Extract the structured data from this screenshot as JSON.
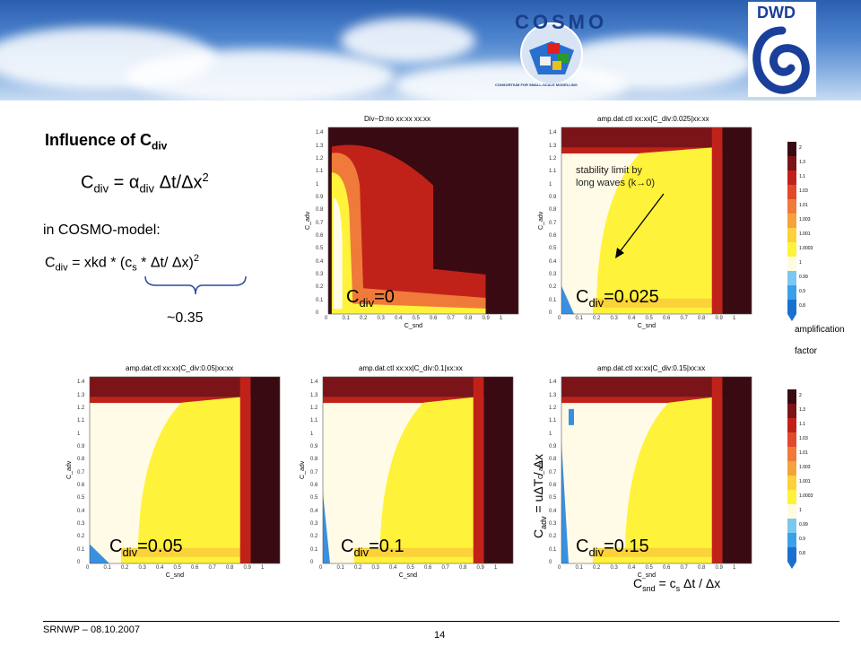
{
  "header": {
    "logo_left_text": "COSMO",
    "logo_left_subtext": "CONSORTIUM FOR SMALL-SCALE MODELLING",
    "logo_right_text": "DWD"
  },
  "left_text": {
    "heading_main": "Influence of C",
    "heading_sub": "div",
    "formula1": "C",
    "formula1_sub": "div",
    "formula1_rest": " =  α",
    "formula1_rest_sub": "div",
    "formula1_tail": " Δt/Δx",
    "formula1_sup": "2",
    "in_cosmo": "in COSMO-model:",
    "formula2": "C",
    "formula2_sub": "div",
    "formula2_rest": " = xkd * (c",
    "formula2_sub2": "s",
    "formula2_tail": " * Δt/ Δx)",
    "formula2_sup": "2",
    "approx": "~0.35"
  },
  "annotation": {
    "line1": "stability limit by",
    "line2": "long waves (k→0)"
  },
  "colorbar": {
    "ticks": [
      "2",
      "1.3",
      "1.1",
      "1.03",
      "1.01",
      "1.003",
      "1.001",
      "1.0003",
      "1",
      "0.99",
      "0.9",
      "0.8"
    ],
    "label1": "amplification",
    "label2": "factor",
    "colors": [
      "#3a0a12",
      "#7a1418",
      "#c0221a",
      "#e04a2a",
      "#f07a3a",
      "#f6a23c",
      "#fcd23a",
      "#fff23a",
      "#fffbe0",
      "#7ac8f0",
      "#3aa0e8",
      "#1a70d0"
    ]
  },
  "axis_labels": {
    "big_y": "C",
    "big_y_sub": "adv",
    "big_y_rest": " = uΔT / Δx",
    "big_x": "C",
    "big_x_sub": "snd",
    "big_x_rest": " = c",
    "big_x_sub2": "s",
    "big_x_tail": " Δt / Δx"
  },
  "footer": {
    "left": "SRNWP  – 08.10.2007",
    "page": "14"
  },
  "chart_data": [
    {
      "type": "heatmap",
      "title": "Div−D:no   xx:xx   xx:xx",
      "xlabel": "C_snd",
      "ylabel": "C_adv",
      "label": "C_div=0",
      "label_main": "C",
      "label_sub": "div",
      "label_val": "=0",
      "xlim": [
        0,
        1
      ],
      "ylim": [
        0,
        1.45
      ],
      "xticks": [
        "0",
        "0.1",
        "0.2",
        "0.3",
        "0.4",
        "0.5",
        "0.6",
        "0.7",
        "0.8",
        "0.9",
        "1"
      ],
      "yticks": [
        "1.4",
        "1.3",
        "1.2",
        "1.1",
        "1",
        "0.9",
        "0.8",
        "0.7",
        "0.6",
        "0.5",
        "0.4",
        "0.3",
        "0.2",
        "0.1",
        "0"
      ]
    },
    {
      "type": "heatmap",
      "title": "amp.dat.ctl     xx:xx|C_div:0.025|xx:xx",
      "xlabel": "C_snd",
      "ylabel": "C_adv",
      "label": "C_div=0.025",
      "label_main": "C",
      "label_sub": "div",
      "label_val": "=0.025",
      "xlim": [
        0,
        1
      ],
      "ylim": [
        0,
        1.45
      ],
      "xticks": [
        "0",
        "0.1",
        "0.2",
        "0.3",
        "0.4",
        "0.5",
        "0.6",
        "0.7",
        "0.8",
        "0.9",
        "1"
      ],
      "yticks": [
        "1.4",
        "1.3",
        "1.2",
        "1.1",
        "1",
        "0.9",
        "0.8",
        "0.7",
        "0.6",
        "0.5",
        "0.4",
        "0.3",
        "0.2",
        "0.1",
        "0"
      ]
    },
    {
      "type": "heatmap",
      "title": "amp.dat.ctl     xx:xx|C_div:0.05|xx:xx",
      "xlabel": "C_snd",
      "ylabel": "C_adv",
      "label": "C_div=0.05",
      "label_main": "C",
      "label_sub": "div",
      "label_val": "=0.05",
      "xlim": [
        0,
        1
      ],
      "ylim": [
        0,
        1.45
      ],
      "xticks": [
        "0",
        "0.1",
        "0.2",
        "0.3",
        "0.4",
        "0.5",
        "0.6",
        "0.7",
        "0.8",
        "0.9",
        "1"
      ],
      "yticks": [
        "1.4",
        "1.3",
        "1.2",
        "1.1",
        "1",
        "0.9",
        "0.8",
        "0.7",
        "0.6",
        "0.5",
        "0.4",
        "0.3",
        "0.2",
        "0.1",
        "0"
      ]
    },
    {
      "type": "heatmap",
      "title": "amp.dat.ctl     xx:xx|C_div:0.1|xx:xx",
      "xlabel": "C_snd",
      "ylabel": "C_adv",
      "label": "C_div=0.1",
      "label_main": "C",
      "label_sub": "div",
      "label_val": "=0.1",
      "xlim": [
        0,
        1
      ],
      "ylim": [
        0,
        1.45
      ],
      "xticks": [
        "0",
        "0.1",
        "0.2",
        "0.3",
        "0.4",
        "0.5",
        "0.6",
        "0.7",
        "0.8",
        "0.9",
        "1"
      ],
      "yticks": [
        "1.4",
        "1.3",
        "1.2",
        "1.1",
        "1",
        "0.9",
        "0.8",
        "0.7",
        "0.6",
        "0.5",
        "0.4",
        "0.3",
        "0.2",
        "0.1",
        "0"
      ]
    },
    {
      "type": "heatmap",
      "title": "amp.dat.ctl     xx:xx|C_div:0.15|xx:xx",
      "xlabel": "C_snd",
      "ylabel": "C_adv",
      "label": "C_div=0.15",
      "label_main": "C",
      "label_sub": "div",
      "label_val": "=0.15",
      "xlim": [
        0,
        1
      ],
      "ylim": [
        0,
        1.45
      ],
      "xticks": [
        "0",
        "0.1",
        "0.2",
        "0.3",
        "0.4",
        "0.5",
        "0.6",
        "0.7",
        "0.8",
        "0.9",
        "1"
      ],
      "yticks": [
        "1.4",
        "1.3",
        "1.2",
        "1.1",
        "1",
        "0.9",
        "0.8",
        "0.7",
        "0.6",
        "0.5",
        "0.4",
        "0.3",
        "0.2",
        "0.1",
        "0"
      ]
    }
  ]
}
